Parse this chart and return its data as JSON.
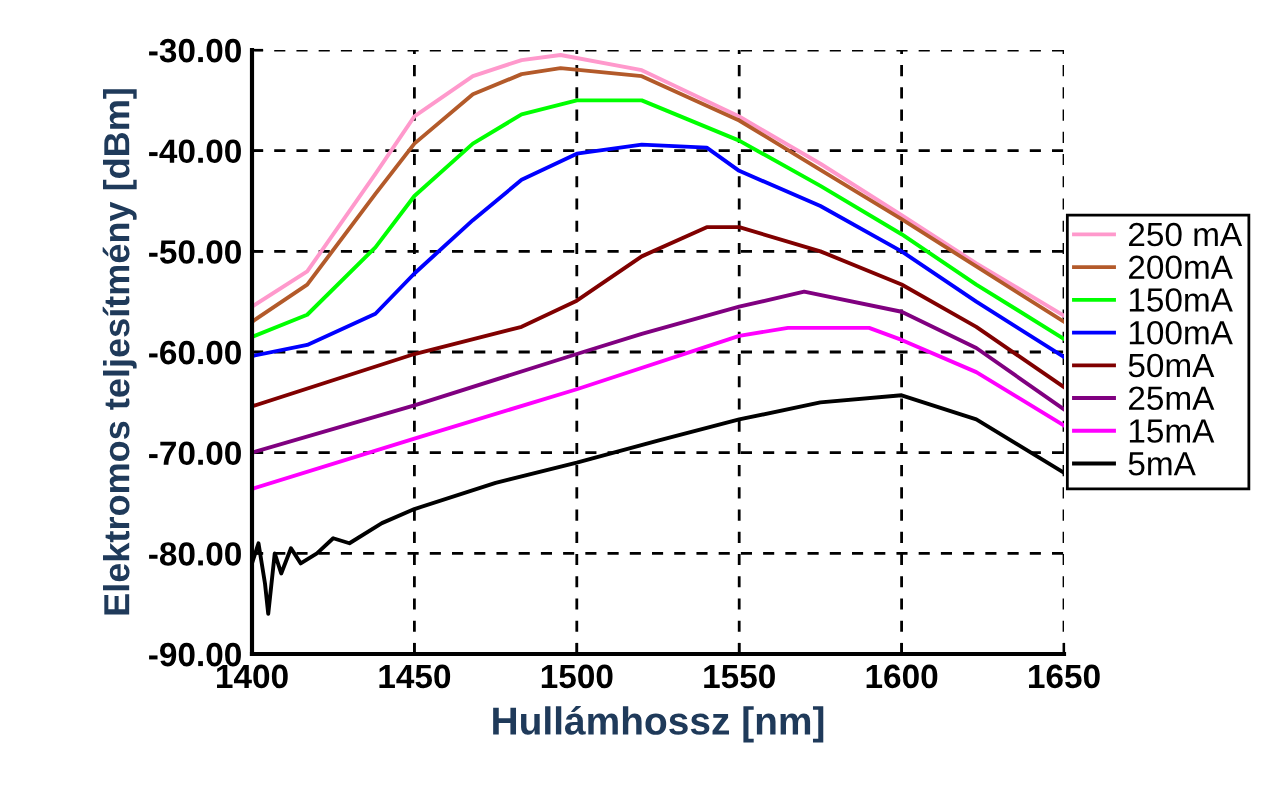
{
  "chart_data": {
    "type": "line",
    "xlabel": "Hullámhossz [nm]",
    "ylabel": "Elektromos teljesítmény [dBm]",
    "xlim": [
      1400,
      1650
    ],
    "xticks": [
      1400,
      1450,
      1500,
      1550,
      1600,
      1650
    ],
    "ylim": [
      -90,
      -30
    ],
    "yticks": [
      {
        "value": -90,
        "label": "-90.00"
      },
      {
        "value": -80,
        "label": "-80.00"
      },
      {
        "value": -70,
        "label": "-70.00"
      },
      {
        "value": -60,
        "label": "-60.00"
      },
      {
        "value": -50,
        "label": "-50.00"
      },
      {
        "value": -40,
        "label": "-40.00"
      },
      {
        "value": -30,
        "label": "-30.00"
      }
    ],
    "grid": true,
    "legend": "right",
    "marker": "none",
    "line_style": "solid",
    "series": [
      {
        "name": "250 mA",
        "color": "#ff99cc",
        "x": [
          1400,
          1417,
          1438,
          1450,
          1468,
          1483,
          1495,
          1520,
          1550,
          1575,
          1600,
          1623,
          1650
        ],
        "values": [
          -55.5,
          -52,
          -42.3,
          -36.6,
          -32.6,
          -31,
          -30.5,
          -32,
          -36.6,
          -41.3,
          -46.4,
          -51.2,
          -56.4
        ]
      },
      {
        "name": "200mA",
        "color": "#b35a2a",
        "x": [
          1400,
          1417,
          1438,
          1450,
          1468,
          1483,
          1495,
          1520,
          1550,
          1575,
          1600,
          1623,
          1650
        ],
        "values": [
          -57,
          -53.3,
          -44.3,
          -39.3,
          -34.4,
          -32.4,
          -31.8,
          -32.6,
          -37,
          -41.9,
          -46.8,
          -51.5,
          -57
        ]
      },
      {
        "name": "150mA",
        "color": "#00ff00",
        "x": [
          1400,
          1417,
          1438,
          1450,
          1468,
          1483,
          1500,
          1520,
          1550,
          1575,
          1600,
          1623,
          1650
        ],
        "values": [
          -58.5,
          -56.3,
          -49.6,
          -44.5,
          -39.3,
          -36.4,
          -35,
          -35,
          -39,
          -43.5,
          -48.3,
          -53.3,
          -58.7
        ]
      },
      {
        "name": "100mA",
        "color": "#0000ff",
        "x": [
          1400,
          1417,
          1438,
          1450,
          1468,
          1483,
          1500,
          1520,
          1540,
          1550,
          1575,
          1600,
          1623,
          1650
        ],
        "values": [
          -60.4,
          -59.3,
          -56.2,
          -52.2,
          -46.9,
          -42.9,
          -40.3,
          -39.4,
          -39.7,
          -42,
          -45.5,
          -50,
          -55,
          -60.5
        ]
      },
      {
        "name": "50mA",
        "color": "#800000",
        "x": [
          1400,
          1450,
          1483,
          1500,
          1520,
          1540,
          1550,
          1575,
          1600,
          1623,
          1650
        ],
        "values": [
          -65.4,
          -60.2,
          -57.5,
          -54.9,
          -50.5,
          -47.6,
          -47.6,
          -50,
          -53.3,
          -57.5,
          -63.5
        ]
      },
      {
        "name": "25mA",
        "color": "#800080",
        "x": [
          1400,
          1450,
          1500,
          1520,
          1550,
          1570,
          1600,
          1623,
          1650
        ],
        "values": [
          -70,
          -65.3,
          -60.2,
          -58.2,
          -55.5,
          -54,
          -56,
          -59.6,
          -65.7
        ]
      },
      {
        "name": "15mA",
        "color": "#ff00ff",
        "x": [
          1400,
          1450,
          1500,
          1550,
          1565,
          1590,
          1600,
          1623,
          1650
        ],
        "values": [
          -73.6,
          -68.6,
          -63.7,
          -58.4,
          -57.6,
          -57.6,
          -58.8,
          -62,
          -67.3
        ]
      },
      {
        "name": "5mA",
        "color": "#000000",
        "x": [
          1400,
          1402,
          1404,
          1405,
          1407,
          1409,
          1412,
          1415,
          1420,
          1425,
          1430,
          1440,
          1450,
          1475,
          1500,
          1525,
          1550,
          1575,
          1600,
          1623,
          1650
        ],
        "values": [
          -81,
          -79,
          -83,
          -86,
          -80,
          -82,
          -79.5,
          -81,
          -80,
          -78.5,
          -79,
          -77,
          -75.6,
          -73,
          -71,
          -68.8,
          -66.7,
          -65,
          -64.3,
          -66.7,
          -72
        ]
      }
    ]
  }
}
